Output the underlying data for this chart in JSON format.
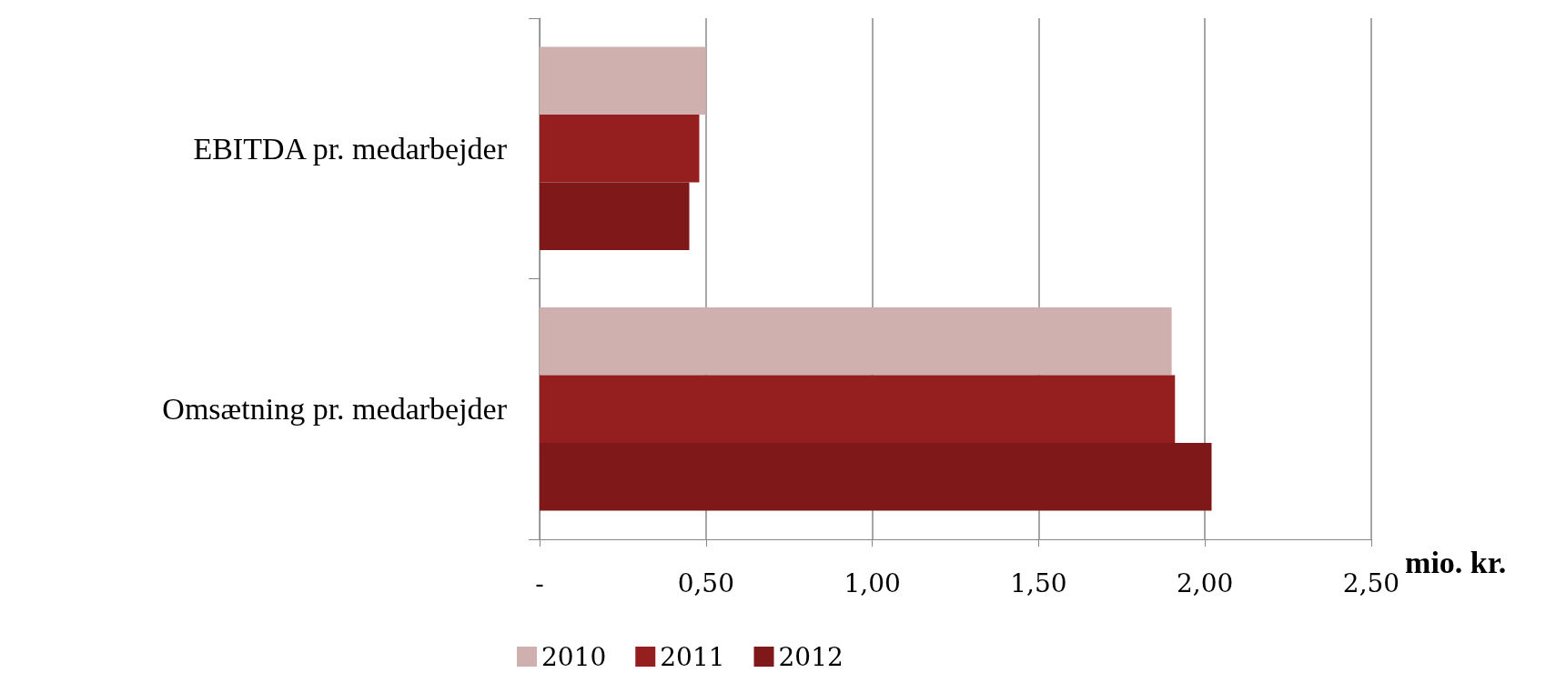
{
  "chart_data": {
    "type": "bar",
    "orientation": "horizontal",
    "categories": [
      "EBITDA pr. medarbejder",
      "Omsætning pr. medarbejder"
    ],
    "series": [
      {
        "name": "2010",
        "color": "#cfb0af",
        "values": [
          0.5,
          1.9
        ]
      },
      {
        "name": "2011",
        "color": "#951e1f",
        "values": [
          0.48,
          1.91
        ]
      },
      {
        "name": "2012",
        "color": "#7f1818",
        "values": [
          0.45,
          2.02
        ]
      }
    ],
    "xlabel": "mio. kr.",
    "xlim": [
      0,
      2.5
    ],
    "xticks": [
      {
        "value": 0,
        "label": "-"
      },
      {
        "value": 0.5,
        "label": "0,50"
      },
      {
        "value": 1,
        "label": "1,00"
      },
      {
        "value": 1.5,
        "label": "1,50"
      },
      {
        "value": 2,
        "label": "2,00"
      },
      {
        "value": 2.5,
        "label": "2,50"
      }
    ],
    "grid": "x",
    "legend": "bottom left"
  }
}
